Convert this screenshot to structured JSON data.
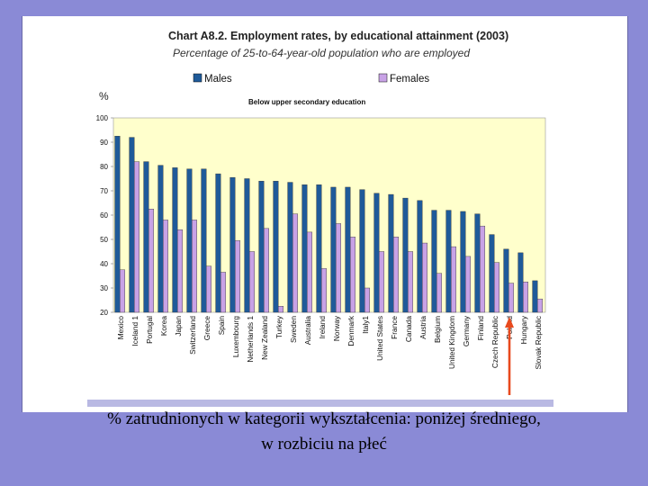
{
  "caption": {
    "line1": "% zatrudnionych w kategorii wykształcenia: poniżej średniego,",
    "line2": "w rozbiciu na płeć"
  },
  "chart_data": {
    "type": "bar",
    "title": "Chart A8.2. Employment rates, by educational attainment (2003)",
    "subtitle": "Percentage of 25-to-64-year-old population who are employed",
    "panel_label": "Below upper secondary education",
    "ylabel": "%",
    "ylim": [
      20,
      100
    ],
    "yticks": [
      20,
      30,
      40,
      50,
      60,
      70,
      80,
      90,
      100
    ],
    "legend": {
      "placement": "top-left",
      "entries": [
        "Males",
        "Females"
      ]
    },
    "grid": false,
    "colors": {
      "Males": "#1f5a99",
      "Females": "#c8a2e6",
      "plot_bg": "#ffffcc",
      "highlight_arrow": "#e84a1e"
    },
    "highlight_category": "Poland",
    "categories": [
      "Mexico",
      "Iceland 1",
      "Portugal",
      "Korea",
      "Japan",
      "Switzerland",
      "Greece",
      "Spain",
      "Luxembourg",
      "Netherlands 1",
      "New Zealand",
      "Turkey",
      "Sweden",
      "Australia",
      "Ireland",
      "Norway",
      "Denmark",
      "Italy1",
      "United States",
      "France",
      "Canada",
      "Austria",
      "Belgium",
      "United Kingdom",
      "Germany",
      "Finland",
      "Czech Republic",
      "Poland",
      "Hungary",
      "Slovak Republic"
    ],
    "series": [
      {
        "name": "Males",
        "values": [
          92.5,
          92,
          82,
          80.5,
          79.5,
          79,
          79,
          77,
          75.5,
          75,
          74,
          74,
          73.5,
          72.5,
          72.5,
          71.5,
          71.5,
          70.5,
          69,
          68.5,
          67,
          66,
          62,
          62,
          61.5,
          60.5,
          52,
          46,
          44.5,
          33
        ]
      },
      {
        "name": "Females",
        "values": [
          37.5,
          82,
          62.5,
          58,
          54,
          58,
          39,
          36.5,
          49.5,
          45,
          54.5,
          22.5,
          60.5,
          53,
          38,
          56.5,
          51,
          30,
          45,
          51,
          45,
          48.5,
          36,
          47,
          43,
          55.5,
          40.5,
          32,
          32.5,
          25.5
        ]
      }
    ]
  }
}
